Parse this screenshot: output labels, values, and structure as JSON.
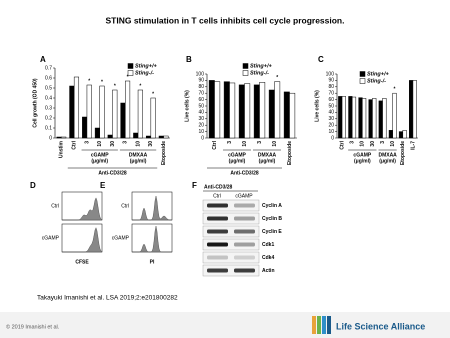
{
  "title": "STING stimulation in T cells inhibits cell cycle progression.",
  "chart_data": [
    {
      "type": "bar",
      "panel": "A",
      "y_label": "Cell growth (OD 450)",
      "categories": [
        "Unstim",
        "Ctrl",
        "3",
        "10",
        "30",
        "3",
        "10",
        "30",
        "Etoposide"
      ],
      "series": [
        {
          "name": "Sting+/+",
          "color": "#000000",
          "values": [
            0.01,
            0.52,
            0.21,
            0.1,
            0.03,
            0.35,
            0.05,
            0.02,
            0.02
          ]
        },
        {
          "name": "Sting-/-",
          "color": "#ffffff",
          "values": [
            0.01,
            0.61,
            0.53,
            0.52,
            0.48,
            0.57,
            0.48,
            0.4,
            0.02
          ],
          "significance": [
            null,
            null,
            "*",
            "*",
            "*",
            "*",
            "*",
            "*",
            null
          ]
        }
      ],
      "group_labels": [
        [
          "cGAMP",
          "(μg/ml)"
        ],
        [
          "DMXAA",
          "(μg/ml)"
        ]
      ],
      "outer_label": "Anti-CD3/28",
      "ylim": [
        0,
        0.7
      ],
      "yticks": [
        0,
        0.1,
        0.2,
        0.3,
        0.4,
        0.5,
        0.6,
        0.7
      ]
    },
    {
      "type": "bar",
      "panel": "B",
      "y_label": "Live cells (%)",
      "categories": [
        "Ctrl",
        "3",
        "10",
        "3",
        "10",
        "Etoposide"
      ],
      "series": [
        {
          "name": "Sting+/+",
          "color": "#000000",
          "values": [
            90,
            88,
            83,
            83,
            75,
            72
          ]
        },
        {
          "name": "Sting-/-",
          "color": "#ffffff",
          "values": [
            88,
            86,
            85,
            87,
            88,
            70
          ],
          "significance": [
            null,
            null,
            null,
            null,
            "*",
            null
          ]
        }
      ],
      "group_labels": [
        [
          "cGAMP",
          "(μg/ml)"
        ],
        [
          "DMXAA",
          "(μg/ml)"
        ]
      ],
      "outer_label": "Anti-CD3/28",
      "ylim": [
        0,
        100
      ],
      "yticks": [
        0,
        10,
        20,
        30,
        40,
        50,
        60,
        70,
        80,
        90,
        100
      ]
    },
    {
      "type": "bar",
      "panel": "C",
      "y_label": "Live cells (%)",
      "categories": [
        "Ctrl",
        "3",
        "10",
        "30",
        "3",
        "10",
        "Etoposide",
        "IL-7"
      ],
      "series": [
        {
          "name": "Sting+/+",
          "color": "#000000",
          "values": [
            65,
            65,
            63,
            60,
            58,
            12,
            10,
            90
          ]
        },
        {
          "name": "Sting-/-",
          "color": "#ffffff",
          "values": [
            65,
            64,
            62,
            62,
            62,
            70,
            12,
            90
          ],
          "significance": [
            null,
            null,
            null,
            null,
            null,
            "*",
            null,
            null
          ]
        }
      ],
      "group_labels": [
        [
          "cGAMP",
          "(μg/ml)"
        ],
        [
          "DMXAA",
          "(μg/ml)"
        ]
      ],
      "ylim": [
        0,
        100
      ],
      "yticks": [
        0,
        10,
        20,
        30,
        40,
        50,
        60,
        70,
        80,
        90,
        100
      ]
    }
  ],
  "panel_d": {
    "letter": "D",
    "rows": [
      "Ctrl",
      "cGAMP"
    ],
    "x_label": "CFSE"
  },
  "panel_e": {
    "letter": "E",
    "rows": [
      "Ctrl",
      "cGAMP"
    ],
    "x_label": "PI"
  },
  "panel_f": {
    "letter": "F",
    "treatment": "Anti-CD3/28",
    "columns": [
      "Ctrl",
      "cGAMP"
    ],
    "rows": [
      "Cyclin A",
      "Cyclin B",
      "Cyclin E",
      "Cdk1",
      "Cdk4",
      "Actin"
    ]
  },
  "citation": "Takayuki Imanishi et al. LSA 2019;2:e201800282",
  "copyright": "© 2019 Imanishi et al.",
  "publisher": "Life Science Alliance"
}
